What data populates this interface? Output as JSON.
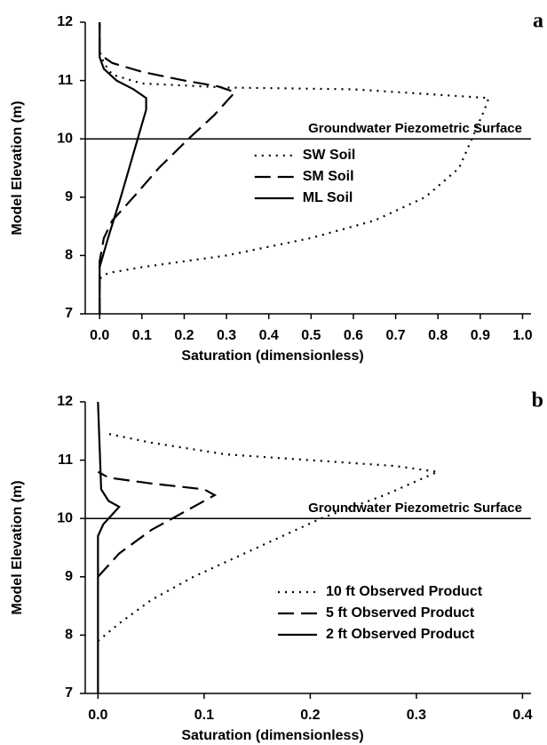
{
  "chart_data": [
    {
      "type": "line",
      "panel_label": "a",
      "xlabel": "Saturation (dimensionless)",
      "ylabel": "Model Elevation (m)",
      "xlim": [
        -0.034,
        1.02
      ],
      "ylim": [
        7,
        12
      ],
      "xticks": [
        {
          "value": 0,
          "label": "0.0"
        },
        0.1,
        0.2,
        0.3,
        0.4,
        0.5,
        0.6,
        0.7,
        0.8,
        0.9,
        {
          "value": 1,
          "label": "1.0"
        }
      ],
      "yticks": [
        7,
        8,
        9,
        10,
        11,
        12
      ],
      "hline": {
        "value": 10,
        "label": "Groundwater Piezometric Surface"
      },
      "legend": "center",
      "series": [
        {
          "name": "SW Soil",
          "color": "#000000",
          "linestyle": "dotted",
          "x": [
            0,
            0,
            0.02,
            0.1,
            0.3,
            0.5,
            0.65,
            0.77,
            0.85,
            0.88,
            0.91,
            0.92,
            0.6,
            0.3,
            0.1,
            0.03,
            0.01,
            0,
            0
          ],
          "y": [
            7,
            7.6,
            7.7,
            7.8,
            8.0,
            8.3,
            8.6,
            9.0,
            9.5,
            10.0,
            10.5,
            10.7,
            10.85,
            10.88,
            10.95,
            11.1,
            11.3,
            11.5,
            12
          ]
        },
        {
          "name": "SM Soil",
          "color": "#000000",
          "linestyle": "dashed",
          "x": [
            0,
            0,
            0.01,
            0.03,
            0.08,
            0.14,
            0.21,
            0.27,
            0.32,
            0.28,
            0.2,
            0.1,
            0.03,
            0,
            0
          ],
          "y": [
            7,
            7.9,
            8.3,
            8.6,
            9.0,
            9.5,
            10.0,
            10.4,
            10.8,
            10.9,
            11.0,
            11.15,
            11.3,
            11.45,
            12
          ]
        },
        {
          "name": "ML Soil",
          "color": "#000000",
          "linestyle": "solid",
          "x": [
            0,
            0,
            0.02,
            0.05,
            0.07,
            0.09,
            0.11,
            0.11,
            0.08,
            0.04,
            0.01,
            0,
            0
          ],
          "y": [
            7,
            7.8,
            8.3,
            9.0,
            9.5,
            10.0,
            10.5,
            10.7,
            10.85,
            11.0,
            11.2,
            11.4,
            12
          ]
        }
      ]
    },
    {
      "type": "line",
      "panel_label": "b",
      "xlabel": "Saturation (dimensionless)",
      "ylabel": "Model Elevation (m)",
      "xlim": [
        -0.012,
        0.408
      ],
      "ylim": [
        7,
        12
      ],
      "xticks": [
        {
          "value": 0,
          "label": "0.0"
        },
        0.1,
        0.2,
        0.3,
        0.4
      ],
      "yticks": [
        7,
        8,
        9,
        10,
        11,
        12
      ],
      "hline": {
        "value": 10,
        "label": "Groundwater Piezometric Surface"
      },
      "legend": "lower right",
      "series": [
        {
          "name": "10 ft Observed Product",
          "color": "#000000",
          "linestyle": "dotted",
          "x": [
            0,
            0.02,
            0.05,
            0.09,
            0.15,
            0.21,
            0.27,
            0.32,
            0.28,
            0.2,
            0.12,
            0.05,
            0.01
          ],
          "y": [
            7.9,
            8.2,
            8.6,
            9.0,
            9.5,
            10.0,
            10.4,
            10.8,
            10.9,
            11.0,
            11.1,
            11.3,
            11.45
          ]
        },
        {
          "name": "5 ft Observed Product",
          "color": "#000000",
          "linestyle": "dashed",
          "x": [
            0,
            0.02,
            0.05,
            0.08,
            0.11,
            0.1,
            0.05,
            0.01,
            0
          ],
          "y": [
            9.0,
            9.4,
            9.8,
            10.1,
            10.4,
            10.5,
            10.6,
            10.7,
            10.8
          ]
        },
        {
          "name": "2 ft Observed Product",
          "color": "#000000",
          "linestyle": "solid",
          "x": [
            0,
            0,
            0.005,
            0.015,
            0.02,
            0.01,
            0.003,
            0.002,
            0
          ],
          "y": [
            7,
            9.7,
            9.9,
            10.1,
            10.2,
            10.3,
            10.5,
            11,
            12
          ]
        }
      ]
    }
  ]
}
